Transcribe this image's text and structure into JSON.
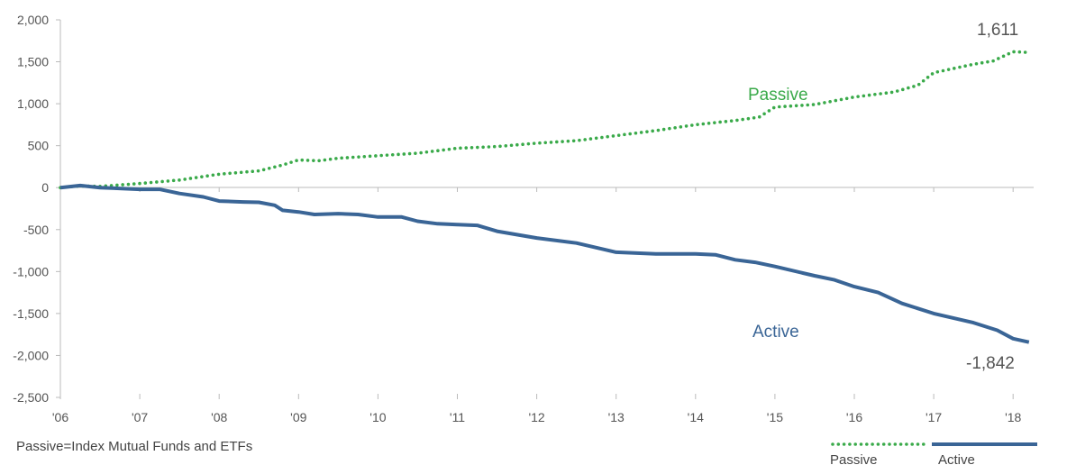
{
  "chart_data": {
    "type": "line",
    "title": "",
    "xlabel": "",
    "ylabel": "",
    "x_ticks": [
      "'06",
      "'07",
      "'08",
      "'09",
      "'10",
      "'11",
      "'12",
      "'13",
      "'14",
      "'15",
      "'16",
      "'17",
      "'18"
    ],
    "y_ticks": [
      "2,000",
      "1,500",
      "1,000",
      "500",
      "0",
      "-500",
      "-1,000",
      "-1,500",
      "-2,000",
      "-2,500"
    ],
    "ylim": [
      -2500,
      2000
    ],
    "xlim": [
      2006,
      2018.25
    ],
    "grid": false,
    "legend_position": "bottom-right",
    "series": [
      {
        "name": "Passive",
        "style": "dotted",
        "color": "#3aaa4a",
        "end_label": "1,611",
        "points": [
          [
            2006.0,
            0
          ],
          [
            2006.25,
            20
          ],
          [
            2006.5,
            15
          ],
          [
            2007.0,
            50
          ],
          [
            2007.5,
            90
          ],
          [
            2008.0,
            160
          ],
          [
            2008.5,
            200
          ],
          [
            2008.8,
            270
          ],
          [
            2009.0,
            330
          ],
          [
            2009.25,
            320
          ],
          [
            2009.5,
            350
          ],
          [
            2010.0,
            380
          ],
          [
            2010.5,
            410
          ],
          [
            2011.0,
            470
          ],
          [
            2011.5,
            490
          ],
          [
            2012.0,
            530
          ],
          [
            2012.5,
            560
          ],
          [
            2013.0,
            620
          ],
          [
            2013.5,
            680
          ],
          [
            2014.0,
            750
          ],
          [
            2014.5,
            800
          ],
          [
            2014.8,
            840
          ],
          [
            2015.0,
            960
          ],
          [
            2015.5,
            990
          ],
          [
            2016.0,
            1080
          ],
          [
            2016.5,
            1140
          ],
          [
            2016.8,
            1220
          ],
          [
            2017.0,
            1370
          ],
          [
            2017.5,
            1470
          ],
          [
            2017.75,
            1510
          ],
          [
            2018.0,
            1620
          ],
          [
            2018.2,
            1611
          ]
        ]
      },
      {
        "name": "Active",
        "style": "solid",
        "color": "#3a6596",
        "end_label": "-1,842",
        "points": [
          [
            2006.0,
            0
          ],
          [
            2006.25,
            25
          ],
          [
            2006.5,
            0
          ],
          [
            2007.0,
            -20
          ],
          [
            2007.25,
            -20
          ],
          [
            2007.5,
            -70
          ],
          [
            2007.8,
            -110
          ],
          [
            2008.0,
            -160
          ],
          [
            2008.3,
            -170
          ],
          [
            2008.5,
            -175
          ],
          [
            2008.7,
            -210
          ],
          [
            2008.8,
            -270
          ],
          [
            2009.0,
            -290
          ],
          [
            2009.2,
            -320
          ],
          [
            2009.5,
            -310
          ],
          [
            2009.75,
            -320
          ],
          [
            2010.0,
            -350
          ],
          [
            2010.3,
            -350
          ],
          [
            2010.5,
            -400
          ],
          [
            2010.75,
            -430
          ],
          [
            2011.0,
            -440
          ],
          [
            2011.25,
            -450
          ],
          [
            2011.5,
            -520
          ],
          [
            2012.0,
            -600
          ],
          [
            2012.5,
            -660
          ],
          [
            2013.0,
            -770
          ],
          [
            2013.5,
            -790
          ],
          [
            2014.0,
            -790
          ],
          [
            2014.25,
            -800
          ],
          [
            2014.5,
            -860
          ],
          [
            2014.75,
            -890
          ],
          [
            2015.0,
            -940
          ],
          [
            2015.5,
            -1050
          ],
          [
            2015.75,
            -1100
          ],
          [
            2016.0,
            -1180
          ],
          [
            2016.3,
            -1250
          ],
          [
            2016.6,
            -1380
          ],
          [
            2017.0,
            -1500
          ],
          [
            2017.5,
            -1610
          ],
          [
            2017.8,
            -1700
          ],
          [
            2018.0,
            -1800
          ],
          [
            2018.2,
            -1842
          ]
        ]
      }
    ],
    "annotations": [
      {
        "text": "Passive",
        "color": "#3aaa4a"
      },
      {
        "text": "Active",
        "color": "#3a6596"
      }
    ]
  },
  "footnote": "Passive=Index Mutual Funds and ETFs",
  "legend": {
    "passive_label": "Passive",
    "active_label": "Active",
    "passive_color": "#3aaa4a",
    "active_color": "#3a6596"
  }
}
